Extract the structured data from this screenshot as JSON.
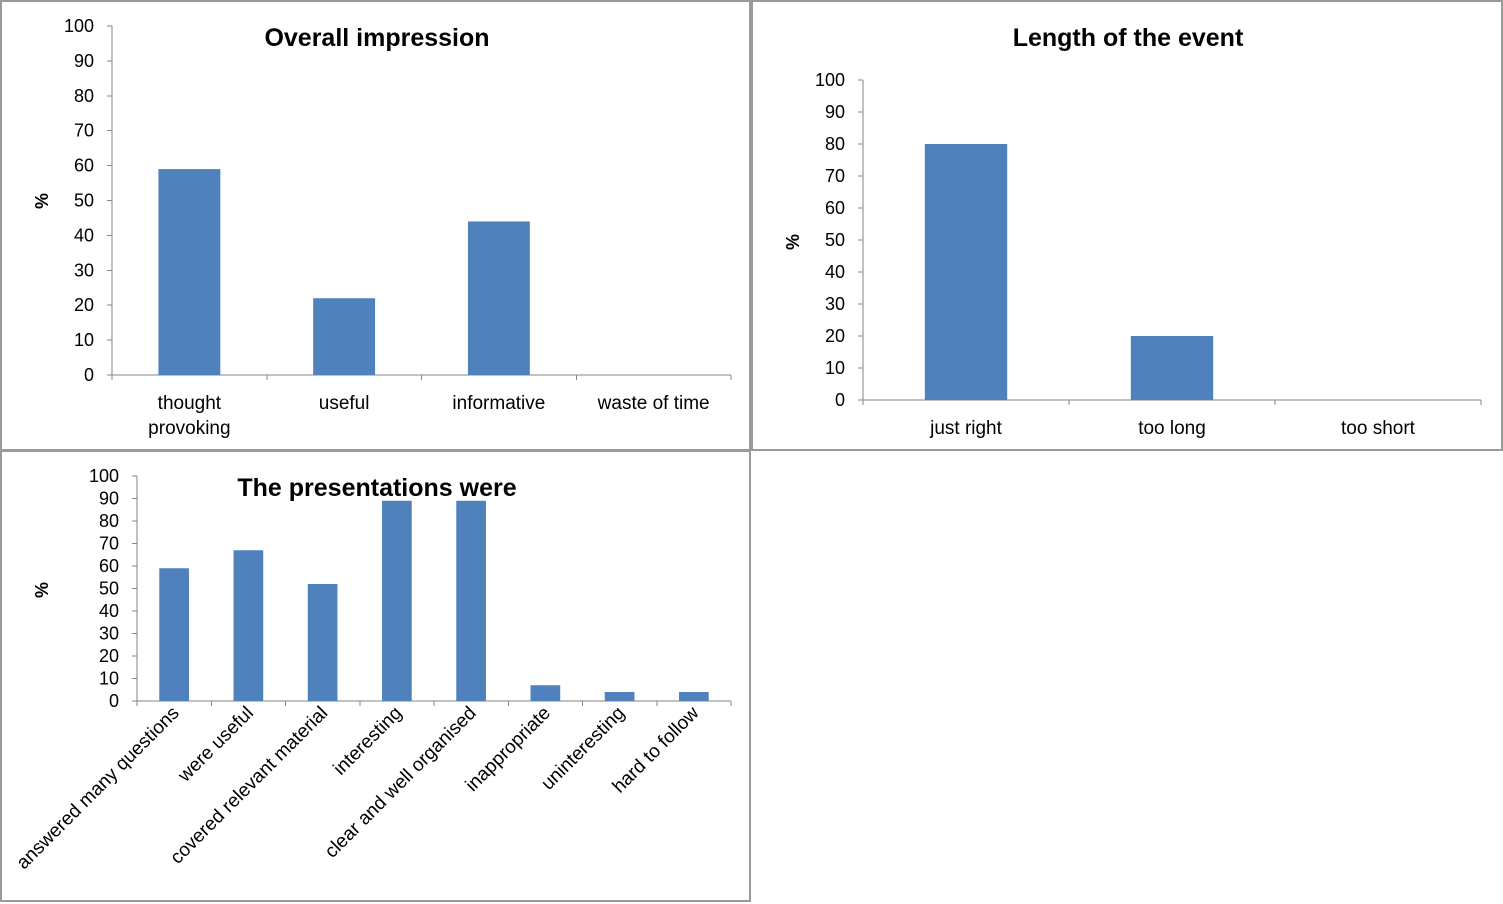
{
  "chart_data": [
    {
      "type": "bar",
      "title": "Overall impression",
      "ylabel": "%",
      "xlabel": "",
      "ylim": [
        0,
        100
      ],
      "yticks": [
        "0",
        "10",
        "20",
        "30",
        "40",
        "50",
        "60",
        "70",
        "80",
        "90",
        "100"
      ],
      "categories": [
        "thought provoking",
        "useful",
        "informative",
        "waste of time"
      ],
      "category_lines": [
        [
          "thought",
          "provoking"
        ],
        [
          "useful"
        ],
        [
          "informative"
        ],
        [
          "waste of time"
        ]
      ],
      "values": [
        59,
        22,
        44,
        0
      ],
      "bar_color": "#4f81bd",
      "grid": false,
      "legend": "none"
    },
    {
      "type": "bar",
      "title": "Length of the event",
      "ylabel": "%",
      "xlabel": "",
      "ylim": [
        0,
        100
      ],
      "yticks": [
        "0",
        "10",
        "20",
        "30",
        "40",
        "50",
        "60",
        "70",
        "80",
        "90",
        "100"
      ],
      "categories": [
        "just right",
        "too long",
        "too short"
      ],
      "category_lines": [
        [
          "just right"
        ],
        [
          "too long"
        ],
        [
          "too short"
        ]
      ],
      "values": [
        80,
        20,
        0
      ],
      "bar_color": "#4f81bd",
      "grid": false,
      "legend": "none"
    },
    {
      "type": "bar",
      "title": "The presentations were",
      "ylabel": "%",
      "xlabel": "",
      "ylim": [
        0,
        100
      ],
      "yticks": [
        "0",
        "10",
        "20",
        "30",
        "40",
        "50",
        "60",
        "70",
        "80",
        "90",
        "100"
      ],
      "categories": [
        "answered many questions",
        "were useful",
        "covered relevant material",
        "interesting",
        "clear and well organised",
        "inappropriate",
        "uninteresting",
        "hard to follow"
      ],
      "values": [
        59,
        67,
        52,
        89,
        89,
        7,
        4,
        4
      ],
      "bar_color": "#4f81bd",
      "grid": false,
      "legend": "none"
    }
  ]
}
